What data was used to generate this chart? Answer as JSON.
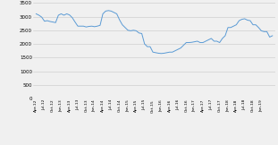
{
  "title": "",
  "xlabel": "",
  "ylabel": "",
  "ylim": [
    0,
    3500
  ],
  "yticks": [
    0,
    500,
    1000,
    1500,
    2000,
    2500,
    3000,
    3500
  ],
  "line_color": "#5B9BD5",
  "bg_color": "#F0F0F0",
  "x_labels": [
    "Apr-12",
    "Jul-12",
    "Oct-12",
    "Jan-13",
    "Apr-13",
    "Jul-13",
    "Oct-13",
    "Jan-14",
    "Apr-14",
    "Jul-14",
    "Oct-14",
    "Jan-15",
    "Apr-15",
    "Jul-15",
    "Oct-15",
    "Jan-16",
    "Apr-16",
    "Jul-16",
    "Oct-16",
    "Jan-17",
    "Apr-17",
    "Jul-17",
    "Oct-17",
    "Jan-18",
    "Apr-18",
    "Jul-18",
    "Oct-18",
    "Jan-19"
  ],
  "monthly_values": [
    3100,
    3050,
    2980,
    2830,
    2850,
    2820,
    2800,
    2780,
    3050,
    3100,
    3050,
    3100,
    3060,
    2960,
    2800,
    2650,
    2650,
    2650,
    2620,
    2640,
    2650,
    2630,
    2650,
    2680,
    3100,
    3200,
    3220,
    3200,
    3150,
    3100,
    2880,
    2700,
    2600,
    2500,
    2480,
    2500,
    2480,
    2400,
    2380,
    2000,
    1900,
    1900,
    1700,
    1680,
    1660,
    1650,
    1660,
    1680,
    1700,
    1700,
    1750,
    1800,
    1850,
    1950,
    2050,
    2050,
    2060,
    2080,
    2100,
    2050,
    2050,
    2100,
    2150,
    2200,
    2100,
    2100,
    2050,
    2200,
    2300,
    2600,
    2600,
    2650,
    2700,
    2850,
    2900,
    2920,
    2870,
    2850,
    2700,
    2700,
    2600,
    2480,
    2450,
    2450,
    2250,
    2300
  ]
}
